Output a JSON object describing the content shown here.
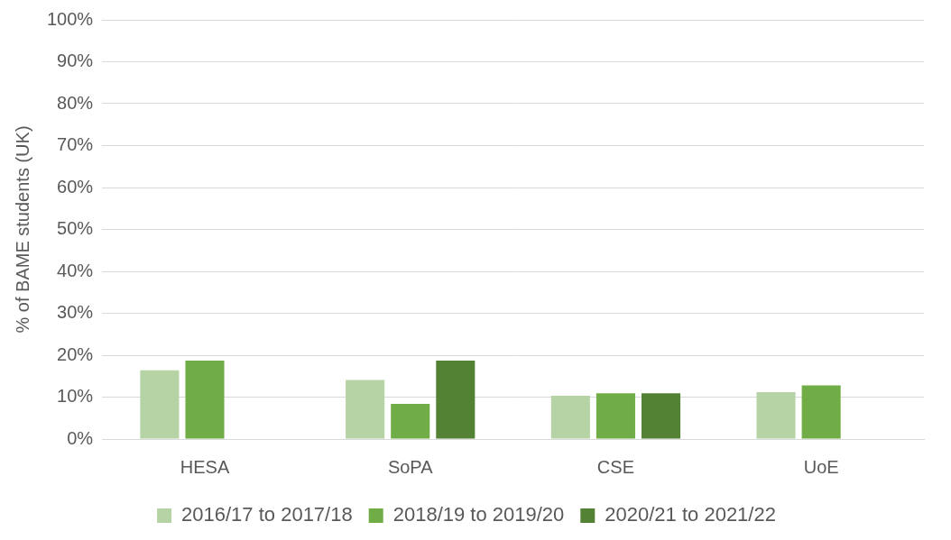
{
  "chart_data": {
    "type": "bar",
    "y_label": "% of BAME students (UK)",
    "categories": [
      "HESA",
      "SoPA",
      "CSE",
      "UoE"
    ],
    "series": [
      {
        "name": "2016/17 to 2017/18",
        "color": "#b5d3a5",
        "values": [
          16.4,
          14.1,
          10.3,
          11.2
        ]
      },
      {
        "name": "2018/19 to 2019/20",
        "color": "#70ad47",
        "values": [
          18.7,
          8.4,
          10.9,
          12.8
        ]
      },
      {
        "name": "2020/21 to 2021/22",
        "color": "#548235",
        "values": [
          null,
          18.7,
          10.9,
          null
        ]
      }
    ],
    "ylim": [
      0,
      100
    ],
    "yticks": [
      {
        "value": 0,
        "label": "0%"
      },
      {
        "value": 10,
        "label": "10%"
      },
      {
        "value": 20,
        "label": "20%"
      },
      {
        "value": 30,
        "label": "30%"
      },
      {
        "value": 40,
        "label": "40%"
      },
      {
        "value": 50,
        "label": "50%"
      },
      {
        "value": 60,
        "label": "60%"
      },
      {
        "value": 70,
        "label": "70%"
      },
      {
        "value": 80,
        "label": "80%"
      },
      {
        "value": 90,
        "label": "90%"
      },
      {
        "value": 100,
        "label": "100%"
      }
    ],
    "grid": true,
    "legend": "bottom"
  }
}
